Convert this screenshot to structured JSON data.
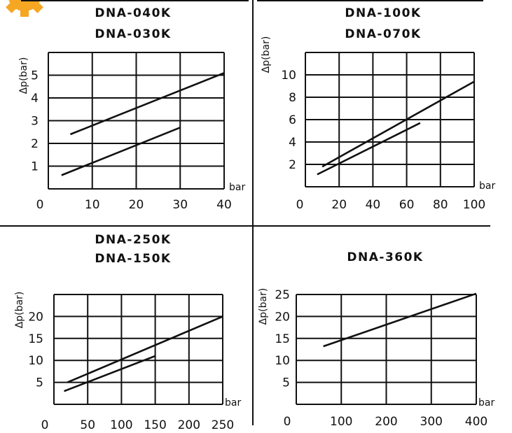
{
  "brand": {
    "accent": "#f5a623",
    "ink": "#111111"
  },
  "chart_data": [
    {
      "type": "line",
      "title_lines": [
        "DNA-040K",
        "DNA-030K"
      ],
      "xlabel": "bar",
      "ylabel": "Δp(bar)",
      "x_tick_labels": [
        "0",
        "10",
        "20",
        "30",
        "40"
      ],
      "x_tick_values": [
        0,
        10,
        20,
        30,
        40
      ],
      "y_tick_labels": [
        "1",
        "2",
        "3",
        "4",
        "5"
      ],
      "y_tick_values": [
        1,
        2,
        3,
        4,
        5
      ],
      "xlim": [
        0,
        40
      ],
      "ylim": [
        0,
        6
      ],
      "x_grid": [
        0,
        10,
        20,
        30,
        40
      ],
      "y_grid": [
        0,
        1,
        2,
        3,
        4,
        5,
        6
      ],
      "grid": true,
      "series": [
        {
          "x": [
            5,
            40
          ],
          "y": [
            2.4,
            5.1
          ]
        },
        {
          "x": [
            3,
            30
          ],
          "y": [
            0.6,
            2.7
          ]
        }
      ]
    },
    {
      "type": "line",
      "title_lines": [
        "DNA-100K",
        "DNA-070K"
      ],
      "xlabel": "bar",
      "ylabel": "Δp(bar)",
      "x_tick_labels": [
        "0",
        "20",
        "40",
        "60",
        "80",
        "100"
      ],
      "x_tick_values": [
        0,
        20,
        40,
        60,
        80,
        100
      ],
      "y_tick_labels": [
        "2",
        "4",
        "6",
        "8",
        "10"
      ],
      "y_tick_values": [
        2,
        4,
        6,
        8,
        10
      ],
      "xlim": [
        0,
        100
      ],
      "ylim": [
        0,
        12
      ],
      "x_grid": [
        0,
        20,
        40,
        60,
        80,
        100
      ],
      "y_grid": [
        0,
        2,
        4,
        6,
        8,
        10,
        12
      ],
      "grid": true,
      "series": [
        {
          "x": [
            10,
            100
          ],
          "y": [
            1.8,
            9.4
          ]
        },
        {
          "x": [
            7,
            68
          ],
          "y": [
            1.1,
            5.7
          ]
        }
      ]
    },
    {
      "type": "line",
      "title_lines": [
        "DNA-250K",
        "DNA-150K"
      ],
      "xlabel": "bar",
      "ylabel": "Δp(bar)",
      "x_tick_labels": [
        "0",
        "50",
        "100",
        "150",
        "200",
        "250"
      ],
      "x_tick_values": [
        0,
        50,
        100,
        150,
        200,
        250
      ],
      "y_tick_labels": [
        "5",
        "10",
        "15",
        "20"
      ],
      "y_tick_values": [
        5,
        10,
        15,
        20
      ],
      "xlim": [
        0,
        250
      ],
      "ylim": [
        0,
        25
      ],
      "x_grid": [
        0,
        50,
        100,
        150,
        200,
        250
      ],
      "y_grid": [
        0,
        5,
        10,
        15,
        20,
        25
      ],
      "grid": true,
      "series": [
        {
          "x": [
            20,
            250
          ],
          "y": [
            5,
            20
          ]
        },
        {
          "x": [
            15,
            150
          ],
          "y": [
            3,
            11
          ]
        }
      ]
    },
    {
      "type": "line",
      "title_lines": [
        "DNA-360K"
      ],
      "xlabel": "bar",
      "ylabel": "Δp(bar)",
      "x_tick_labels": [
        "0",
        "100",
        "200",
        "300",
        "400"
      ],
      "x_tick_values": [
        0,
        100,
        200,
        300,
        400
      ],
      "y_tick_labels": [
        "5",
        "10",
        "15",
        "20",
        "25"
      ],
      "y_tick_values": [
        5,
        10,
        15,
        20,
        25
      ],
      "xlim": [
        0,
        400
      ],
      "ylim": [
        0,
        25
      ],
      "x_grid": [
        0,
        100,
        200,
        300,
        400
      ],
      "y_grid": [
        0,
        5,
        10,
        15,
        20,
        25
      ],
      "grid": true,
      "series": [
        {
          "x": [
            60,
            400
          ],
          "y": [
            13.2,
            25.2
          ]
        }
      ]
    }
  ]
}
